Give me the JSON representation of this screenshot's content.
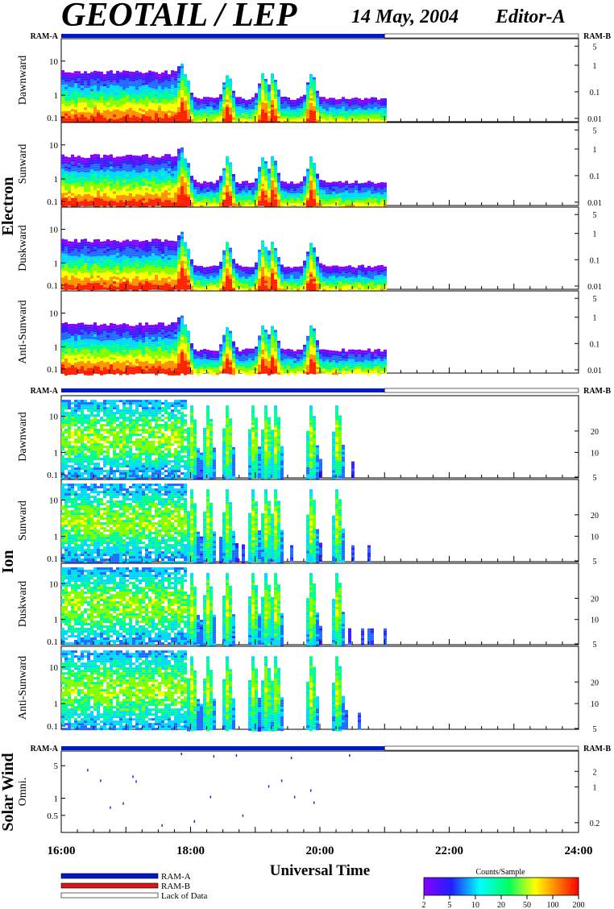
{
  "header": {
    "title": "GEOTAIL / LEP",
    "date": "14 May, 2004",
    "editor": "Editor-A"
  },
  "labels": {
    "ram_a": "RAM-A",
    "ram_b": "RAM-B",
    "xlabel": "Universal Time",
    "group_electron": "Electron",
    "group_ion": "Ion",
    "group_solarwind": "Solar Wind",
    "colorbar_title": "Counts/Sample"
  },
  "legend": {
    "items": [
      {
        "label": "RAM-A",
        "color": "#0018c8"
      },
      {
        "label": "RAM-B",
        "color": "#d81818"
      },
      {
        "label": "Lack of Data",
        "color": "#ffffff"
      }
    ]
  },
  "colorbar": {
    "ticks": [
      "2",
      "5",
      "10",
      "20",
      "50",
      "100",
      "200"
    ],
    "colors": [
      "#8800ff",
      "#2020ff",
      "#00ffff",
      "#00ff60",
      "#ffff00",
      "#ff8000",
      "#ff0000"
    ]
  },
  "chart_data": {
    "type": "heatmap",
    "x_range": [
      "16:00",
      "24:00"
    ],
    "x_ticks": [
      "16:00",
      "18:00",
      "20:00",
      "22:00",
      "24:00"
    ],
    "data_end": "21:00",
    "ram_mode": {
      "RAM-A": [
        "16:00",
        "21:00"
      ],
      "lack_of_data": [
        "21:00",
        "24:00"
      ]
    },
    "groups": [
      {
        "name": "Electron",
        "panels": [
          {
            "label": "Dawnward",
            "left_ticks": [
              "10",
              "1",
              "0.1"
            ],
            "right_ticks": [
              "5",
              "1",
              "0.1",
              "0.01"
            ]
          },
          {
            "label": "Sunward",
            "left_ticks": [
              "10",
              "1",
              "0.1"
            ],
            "right_ticks": [
              "5",
              "1",
              "0.1",
              "0.01"
            ]
          },
          {
            "label": "Duskward",
            "left_ticks": [
              "10",
              "1",
              "0.1"
            ],
            "right_ticks": [
              "5",
              "1",
              "0.1",
              "0.01"
            ]
          },
          {
            "label": "Anti-Sunward",
            "left_ticks": [
              "10",
              "1",
              "0.1"
            ],
            "right_ticks": [
              "5",
              "1",
              "0.1",
              "0.01"
            ]
          }
        ]
      },
      {
        "name": "Ion",
        "panels": [
          {
            "label": "Dawnward",
            "left_ticks": [
              "10",
              "1",
              "0.1"
            ],
            "right_ticks": [
              "20",
              "10",
              "5"
            ]
          },
          {
            "label": "Sunward",
            "left_ticks": [
              "10",
              "1",
              "0.1"
            ],
            "right_ticks": [
              "20",
              "10",
              "5"
            ]
          },
          {
            "label": "Duskward",
            "left_ticks": [
              "10",
              "1",
              "0.1"
            ],
            "right_ticks": [
              "20",
              "10",
              "5"
            ]
          },
          {
            "label": "Anti-Sunward",
            "left_ticks": [
              "10",
              "1",
              "0.1"
            ],
            "right_ticks": [
              "20",
              "10",
              "5"
            ]
          }
        ]
      },
      {
        "name": "Solar Wind",
        "panels": [
          {
            "label": "Omni.",
            "left_ticks": [
              "5",
              "1",
              "0.5"
            ],
            "right_ticks": [
              "2",
              "1",
              "0.2"
            ]
          }
        ]
      }
    ],
    "electron_events": [
      17.9,
      18.55,
      19.1,
      19.25,
      19.85
    ],
    "ion_events": [
      18.0,
      18.25,
      18.55,
      18.95,
      19.15,
      19.3,
      19.85,
      20.25
    ]
  }
}
